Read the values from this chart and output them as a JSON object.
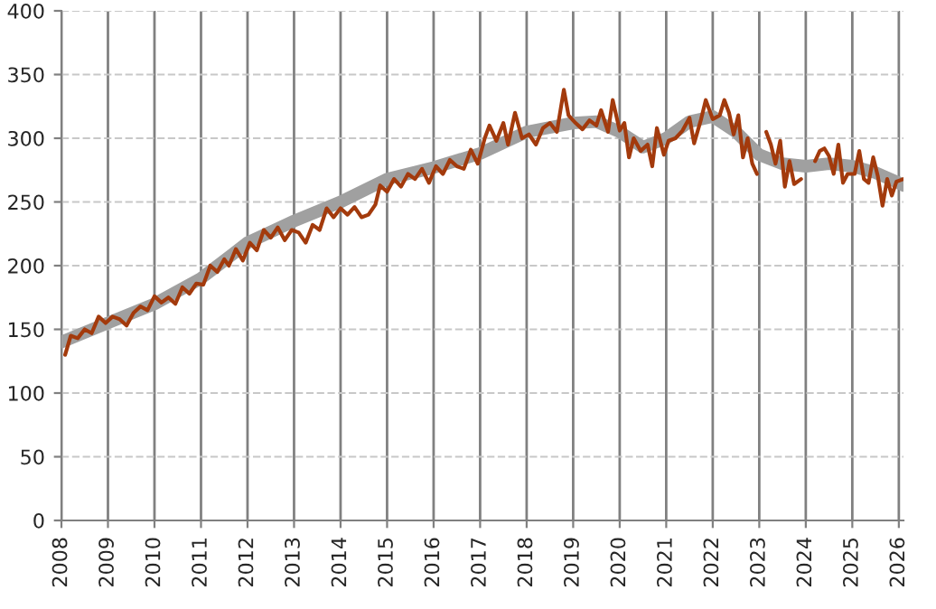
{
  "chart_data": {
    "type": "line",
    "series": [
      {
        "color": "#a0a0a0",
        "x": [
          2008.0,
          2009.0,
          2010.0,
          2011.0,
          2012.0,
          2013.0,
          2014.0,
          2015.0,
          2016.0,
          2017.0,
          2018.0,
          2019.0,
          2019.5,
          2020.0,
          2020.5,
          2021.0,
          2021.5,
          2022.0,
          2022.5,
          2023.0,
          2023.5,
          2024.0,
          2024.5,
          2025.0,
          2025.5,
          2026.0,
          2026.1
        ],
        "values": [
          140,
          155,
          170,
          190,
          218,
          235,
          250,
          268,
          277,
          288,
          305,
          312,
          313,
          305,
          293,
          300,
          313,
          317,
          305,
          287,
          280,
          278,
          280,
          278,
          273,
          265,
          263
        ]
      },
      {
        "color": "#a33a0c",
        "x": [
          2008.08,
          2008.2,
          2008.35,
          2008.5,
          2008.65,
          2008.8,
          2008.95,
          2009.1,
          2009.25,
          2009.4,
          2009.55,
          2009.7,
          2009.85,
          2010.0,
          2010.15,
          2010.3,
          2010.45,
          2010.6,
          2010.75,
          2010.9,
          2011.05,
          2011.2,
          2011.35,
          2011.5,
          2011.6,
          2011.75,
          2011.9,
          2012.05,
          2012.2,
          2012.35,
          2012.5,
          2012.65,
          2012.8,
          2012.95,
          2013.1,
          2013.25,
          2013.4,
          2013.55,
          2013.7,
          2013.85,
          2014.0,
          2014.15,
          2014.3,
          2014.45,
          2014.6,
          2014.75,
          2014.85,
          2015.0,
          2015.15,
          2015.3,
          2015.45,
          2015.6,
          2015.75,
          2015.9,
          2016.05,
          2016.2,
          2016.35,
          2016.5,
          2016.65,
          2016.8,
          2016.95,
          2017.1,
          2017.2,
          2017.35,
          2017.5,
          2017.6,
          2017.75,
          2017.9,
          2018.05,
          2018.2,
          2018.35,
          2018.5,
          2018.65,
          2018.8,
          2018.9,
          2019.05,
          2019.2,
          2019.35,
          2019.5,
          2019.6,
          2019.75,
          2019.85,
          2020.0,
          2020.1,
          2020.2,
          2020.3,
          2020.45,
          2020.6,
          2020.7,
          2020.8,
          2020.95,
          2021.05,
          2021.2,
          2021.35,
          2021.5,
          2021.6,
          2021.75,
          2021.85,
          2022.0,
          2022.15,
          2022.25,
          2022.35,
          2022.45,
          2022.55,
          2022.65,
          2022.75,
          2022.85,
          2022.95,
          2023.05,
          2023.15,
          2023.25,
          2023.35,
          2023.45,
          2023.55,
          2023.65,
          2023.75,
          2023.9,
          2024.05,
          2024.2,
          2024.3,
          2024.4,
          2024.5,
          2024.6,
          2024.7,
          2024.8,
          2024.9,
          2025.05,
          2025.15,
          2025.25,
          2025.35,
          2025.45,
          2025.55,
          2025.65,
          2025.75,
          2025.85,
          2025.95,
          2026.1
        ],
        "values": [
          130,
          145,
          143,
          150,
          147,
          160,
          155,
          160,
          158,
          153,
          163,
          168,
          165,
          176,
          171,
          175,
          170,
          183,
          178,
          186,
          185,
          200,
          195,
          205,
          200,
          213,
          204,
          218,
          212,
          228,
          222,
          230,
          220,
          228,
          226,
          218,
          232,
          228,
          245,
          238,
          245,
          240,
          246,
          238,
          240,
          248,
          263,
          258,
          268,
          262,
          272,
          268,
          276,
          265,
          278,
          272,
          283,
          278,
          276,
          291,
          280,
          300,
          310,
          298,
          312,
          295,
          320,
          300,
          303,
          295,
          308,
          312,
          305,
          338,
          318,
          312,
          307,
          314,
          310,
          322,
          305,
          330,
          306,
          312,
          285,
          300,
          290,
          295,
          278,
          308,
          287,
          298,
          300,
          306,
          316,
          296,
          315,
          330,
          315,
          318,
          330,
          320,
          303,
          318,
          285,
          300,
          280,
          272,
          null,
          305,
          295,
          280,
          298,
          262,
          282,
          264,
          268,
          null,
          282,
          290,
          292,
          286,
          272,
          295,
          265,
          272,
          272,
          290,
          268,
          265,
          285,
          270,
          247,
          268,
          255,
          266,
          268
        ]
      }
    ],
    "xlim": [
      2008,
      2026.1
    ],
    "xticks": [
      2008,
      2009,
      2010,
      2011,
      2012,
      2013,
      2014,
      2015,
      2016,
      2017,
      2018,
      2019,
      2020,
      2021,
      2022,
      2023,
      2024,
      2025,
      2026
    ],
    "ylim": [
      0,
      400
    ],
    "yticks": [
      0,
      50,
      100,
      150,
      200,
      250,
      300,
      350,
      400
    ],
    "grid": true
  }
}
